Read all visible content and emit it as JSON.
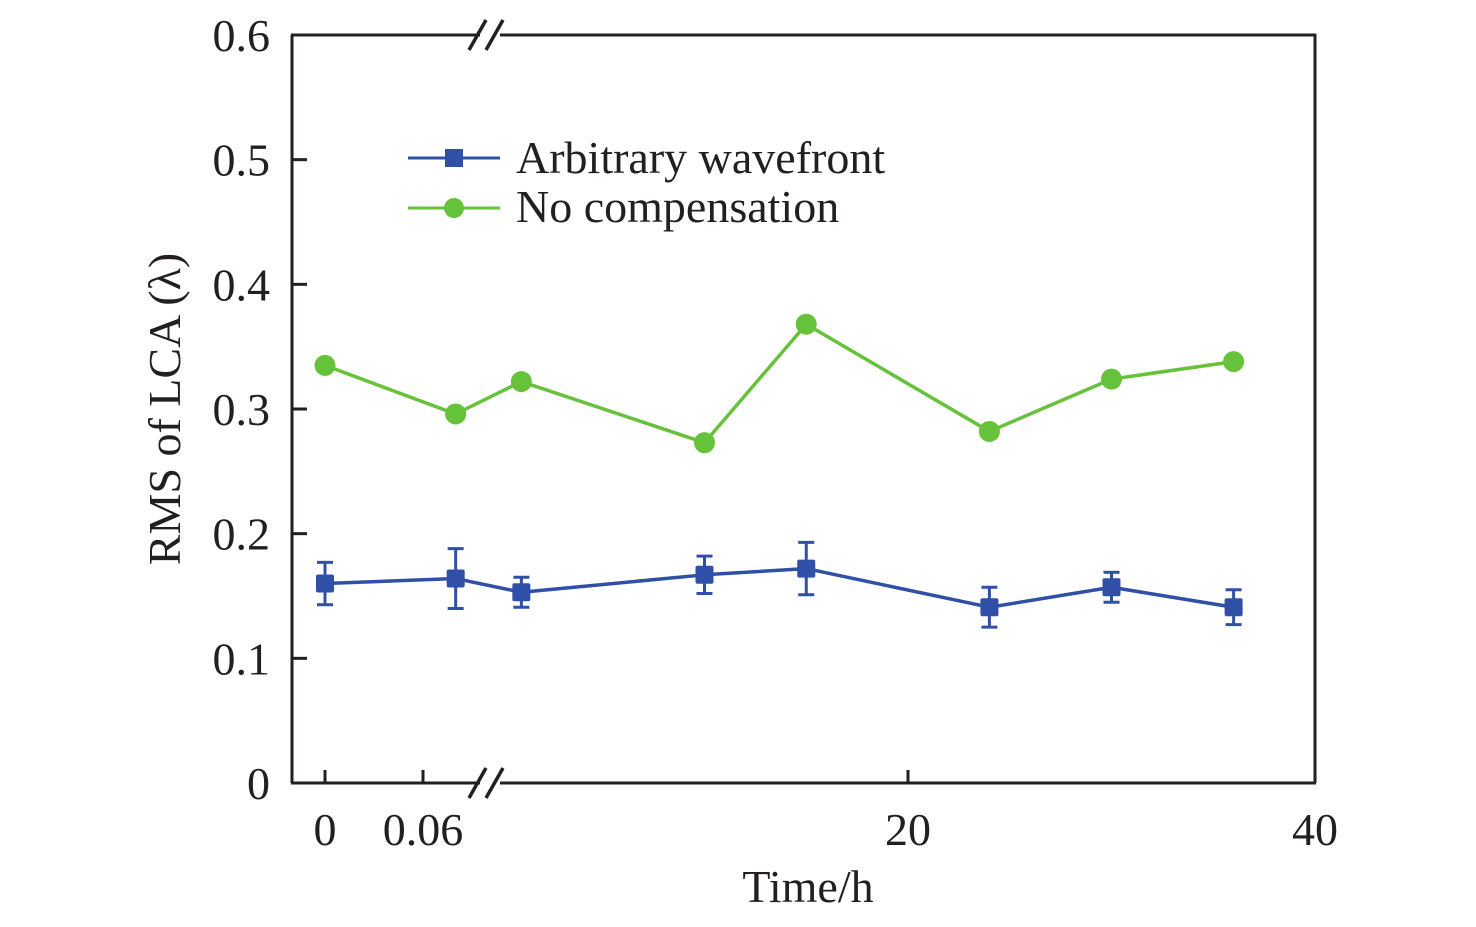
{
  "chart_data": {
    "type": "line",
    "title": "",
    "xlabel": "Time/h",
    "ylabel": "RMS of LCA (λ)",
    "ylim": [
      0,
      0.6
    ],
    "yticks": [
      "0",
      "0.1",
      "0.2",
      "0.3",
      "0.4",
      "0.5",
      "0.6"
    ],
    "xaxis_break": {
      "segment1": {
        "range": [
          0,
          0.1
        ],
        "ticks": [
          "0",
          "0.06"
        ]
      },
      "segment2": {
        "range": [
          0,
          40
        ],
        "ticks": [
          "20",
          "40"
        ]
      }
    },
    "grid": false,
    "legend_position": "top-center",
    "x": [
      0,
      0.08,
      1,
      10,
      15,
      24,
      30,
      36
    ],
    "x_segment": [
      1,
      1,
      2,
      2,
      2,
      2,
      2,
      2
    ],
    "series": [
      {
        "name": "Arbitrary wavefront",
        "color": "#3050a8",
        "marker": "square",
        "values": [
          0.16,
          0.164,
          0.153,
          0.167,
          0.172,
          0.141,
          0.157,
          0.141
        ],
        "errors": [
          0.017,
          0.024,
          0.012,
          0.015,
          0.021,
          0.016,
          0.012,
          0.014
        ]
      },
      {
        "name": "No compensation",
        "color": "#66c23a",
        "marker": "circle",
        "values": [
          0.335,
          0.296,
          0.322,
          0.273,
          0.368,
          0.282,
          0.324,
          0.338
        ]
      }
    ]
  }
}
